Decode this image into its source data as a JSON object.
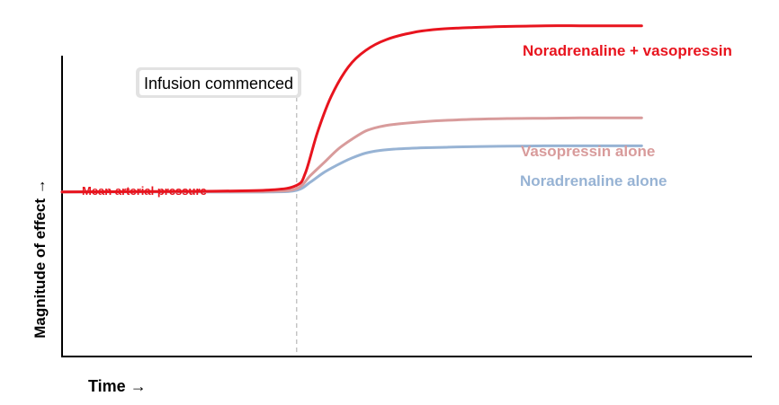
{
  "chart_data": {
    "type": "line",
    "xlabel": "Time →",
    "ylabel": "Magnitude of effect →",
    "xlim": [
      0,
      100
    ],
    "ylim": [
      0,
      100
    ],
    "grid": false,
    "legend": "inline-right",
    "annotation": {
      "text": "Infusion commenced",
      "x": 34
    },
    "baseline_label": {
      "text": "Mean arterial pressure",
      "color": "#e8141e"
    },
    "series": [
      {
        "name": "Noradrenaline + vasopressin",
        "color": "#e8141e",
        "x": [
          0,
          10,
          20,
          30,
          34,
          35.3,
          37,
          39,
          41.5,
          44,
          47,
          51,
          55,
          60,
          65,
          70,
          75,
          80,
          84
        ],
        "y": [
          50,
          50.1,
          50.2,
          50.6,
          52,
          56,
          68,
          79,
          88,
          93,
          96.3,
          98.5,
          99.5,
          100,
          100.3,
          100.5,
          100.5,
          100.5,
          100.5
        ]
      },
      {
        "name": "Vasopressin alone",
        "color": "#d89b9b",
        "x": [
          0,
          10,
          20,
          30,
          34,
          36,
          38,
          40,
          42,
          44,
          46,
          48,
          52,
          56,
          60,
          65,
          70,
          75,
          80,
          84
        ],
        "y": [
          50,
          50.1,
          50.1,
          50.2,
          51,
          55,
          59,
          63,
          66,
          68.5,
          69.8,
          70.5,
          71.3,
          71.8,
          72.1,
          72.3,
          72.4,
          72.5,
          72.5,
          72.5
        ]
      },
      {
        "name": "Noradrenaline alone",
        "color": "#97b3d4",
        "x": [
          0,
          10,
          20,
          30,
          34,
          36,
          38,
          40,
          42,
          44,
          46,
          48,
          52,
          56,
          60,
          65,
          70,
          75,
          80,
          84
        ],
        "y": [
          50,
          50,
          50,
          50,
          50.5,
          53,
          56,
          58.3,
          60.3,
          61.8,
          62.6,
          63,
          63.4,
          63.6,
          63.8,
          63.9,
          64,
          64,
          64,
          64
        ]
      }
    ]
  }
}
